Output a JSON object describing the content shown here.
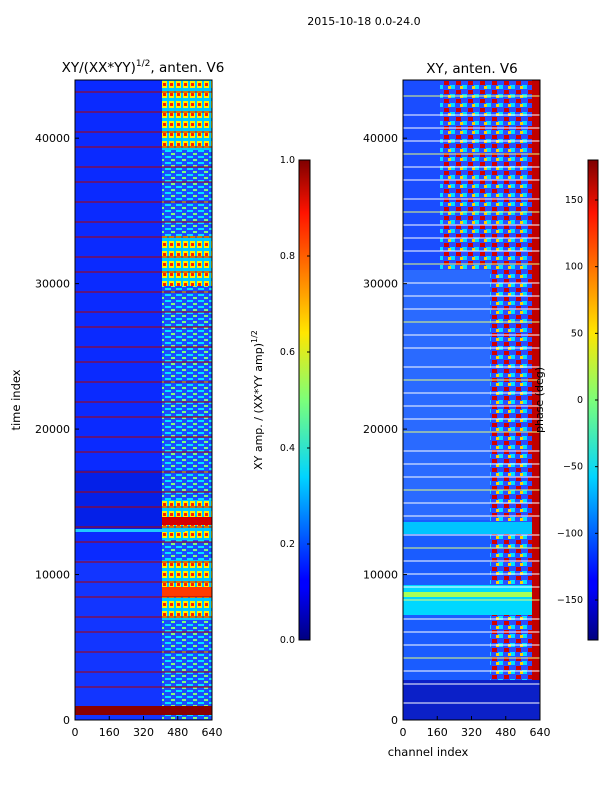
{
  "suptitle": "2015-10-18 0.0-24.0",
  "chart_data": [
    {
      "type": "heatmap",
      "title": "XY/(XX*YY)",
      "title_superscript": "1/2",
      "title_suffix": ", anten. V6",
      "xlabel": "",
      "ylabel": "time index",
      "xlim": [
        0,
        640
      ],
      "ylim": [
        0,
        44000
      ],
      "xticks": [
        0,
        160,
        320,
        480,
        640
      ],
      "yticks": [
        0,
        10000,
        20000,
        30000,
        40000
      ],
      "colorbar": {
        "label": "XY amp. / (XX*YY amp)",
        "label_superscript": "1/2",
        "range": [
          0.0,
          1.0
        ],
        "ticks": [
          "0.0",
          "0.2",
          "0.4",
          "0.6",
          "0.8",
          "1.0"
        ]
      }
    },
    {
      "type": "heatmap",
      "title": "XY, anten. V6",
      "xlabel": "channel index",
      "ylabel": "",
      "xlim": [
        0,
        640
      ],
      "ylim": [
        0,
        44000
      ],
      "xticks": [
        0,
        160,
        320,
        480,
        640
      ],
      "yticks": [
        0,
        10000,
        20000,
        30000,
        40000
      ],
      "colorbar": {
        "label": "phase (deg)",
        "range": [
          -180,
          180
        ],
        "ticks": [
          "−150",
          "−100",
          "−50",
          "0",
          "50",
          "100",
          "150"
        ]
      }
    }
  ]
}
